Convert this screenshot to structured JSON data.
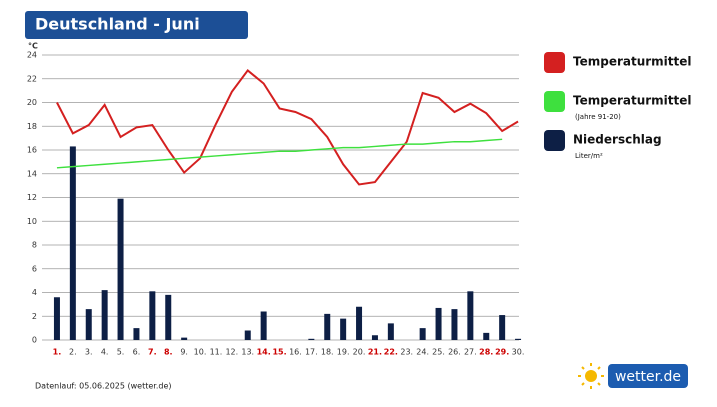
{
  "chart_data": {
    "type": "combo",
    "title": "Deutschland - Juni",
    "y_label": "°C",
    "categories": [
      "1.",
      "2.",
      "3.",
      "4.",
      "5.",
      "6.",
      "7.",
      "8.",
      "9.",
      "10.",
      "11.",
      "12.",
      "13.",
      "14.",
      "15.",
      "16.",
      "17.",
      "18.",
      "19.",
      "20.",
      "21.",
      "22.",
      "23.",
      "24.",
      "25.",
      "26.",
      "27.",
      "28.",
      "29.",
      "30."
    ],
    "category_label_colors": [
      "#cc0000",
      "#333333",
      "#333333",
      "#333333",
      "#333333",
      "#333333",
      "#cc0000",
      "#cc0000",
      "#333333",
      "#333333",
      "#333333",
      "#333333",
      "#333333",
      "#cc0000",
      "#cc0000",
      "#333333",
      "#333333",
      "#333333",
      "#333333",
      "#333333",
      "#cc0000",
      "#cc0000",
      "#333333",
      "#333333",
      "#333333",
      "#333333",
      "#333333",
      "#cc0000",
      "#cc0000",
      "#333333"
    ],
    "ylim": [
      0,
      24
    ],
    "yticks": [
      0,
      2,
      4,
      6,
      8,
      10,
      12,
      14,
      16,
      18,
      20,
      22,
      24
    ],
    "grid": true,
    "series": [
      {
        "name": "Niederschlag",
        "note": "Liter/m²",
        "type": "bar",
        "color": "#0d1f45",
        "values": [
          3.6,
          16.3,
          2.6,
          4.2,
          11.9,
          1.0,
          4.1,
          3.8,
          0.2,
          0,
          0,
          0,
          0.8,
          2.4,
          0,
          0,
          0.1,
          2.2,
          1.8,
          2.8,
          0.4,
          1.4,
          0,
          1.0,
          2.7,
          2.6,
          4.1,
          0.6,
          2.1,
          0.1
        ]
      },
      {
        "name": "Temperaturmittel",
        "type": "line",
        "color": "#d42020",
        "values": [
          20.0,
          17.4,
          18.1,
          19.8,
          17.1,
          17.9,
          18.1,
          16.0,
          14.1,
          15.3,
          18.2,
          20.9,
          22.7,
          21.6,
          19.5,
          19.2,
          18.6,
          17.1,
          14.8,
          13.1,
          13.3,
          15.0,
          16.7,
          20.8,
          20.4,
          19.2,
          19.9,
          19.1,
          17.6,
          18.4
        ]
      },
      {
        "name": "Temperaturmittel",
        "note": "(Jahre 91-20)",
        "type": "line",
        "color": "#3ee03e",
        "values": [
          14.5,
          14.6,
          14.7,
          14.8,
          14.9,
          15.0,
          15.1,
          15.2,
          15.3,
          15.4,
          15.5,
          15.6,
          15.7,
          15.8,
          15.9,
          15.9,
          16.0,
          16.1,
          16.2,
          16.2,
          16.3,
          16.4,
          16.5,
          16.5,
          16.6,
          16.7,
          16.7,
          16.8,
          16.9,
          null
        ]
      }
    ],
    "footer": "Datenlauf: 05.06.2025 (wetter.de)",
    "logo": "wetter.de"
  }
}
